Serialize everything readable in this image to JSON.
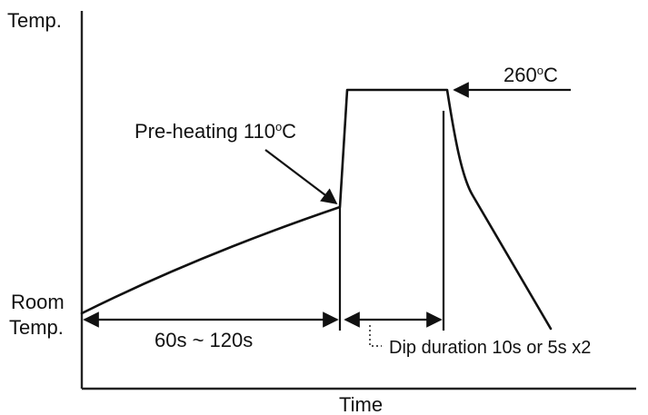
{
  "axes": {
    "y_label": "Temp.",
    "x_label": "Time",
    "room_temp_line1": "Room",
    "room_temp_line2": "Temp."
  },
  "annotations": {
    "preheat_prefix": "Pre-heating 110",
    "preheat_sup": "o",
    "preheat_suffix": "C",
    "peak_prefix": "260",
    "peak_sup": "o",
    "peak_suffix": "C",
    "preheat_duration": "60s ~ 120s",
    "dip_duration": "Dip duration 10s or 5s x2"
  }
}
